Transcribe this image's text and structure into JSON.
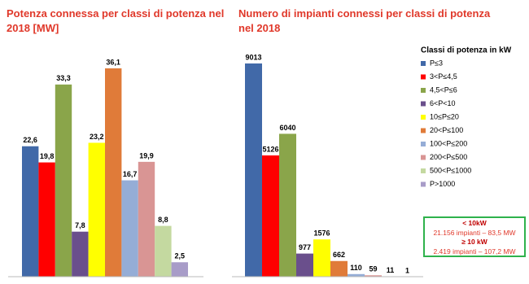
{
  "legend": {
    "title": "Classi di potenza in kW",
    "categories": [
      "P≤3",
      "3<P≤4,5",
      "4,5<P≤6",
      "6<P<10",
      "10≤P≤20",
      "20<P≤100",
      "100<P≤200",
      "200<P≤500",
      "500<P≤1000",
      "P>1000"
    ],
    "colors": [
      "#4169a8",
      "#ff0000",
      "#8aa54a",
      "#6a4f8c",
      "#ffff00",
      "#e07b39",
      "#95add6",
      "#d99594",
      "#c4d9a0",
      "#a89cc8"
    ]
  },
  "chart_data": [
    {
      "type": "bar",
      "title": "Potenza connessa per classi di potenza nel 2018 [MW]",
      "values": [
        22.6,
        19.8,
        33.3,
        7.8,
        23.2,
        36.1,
        16.7,
        19.9,
        8.8,
        2.5
      ],
      "value_labels": [
        "22,6",
        "19,8",
        "33,3",
        "7,8",
        "23,2",
        "36,1",
        "16,7",
        "19,9",
        "8,8",
        "2,5"
      ]
    },
    {
      "type": "bar",
      "title": "Numero di impianti connessi per classi di potenza nel 2018",
      "values": [
        9013,
        5126,
        6040,
        977,
        1576,
        662,
        110,
        59,
        11,
        1
      ]
    }
  ],
  "annotation": {
    "lines": [
      "< 10kW",
      "21.156 impianti – 83,5 MW",
      "≥ 10 kW",
      "2.419 impianti – 107,2 MW"
    ]
  }
}
